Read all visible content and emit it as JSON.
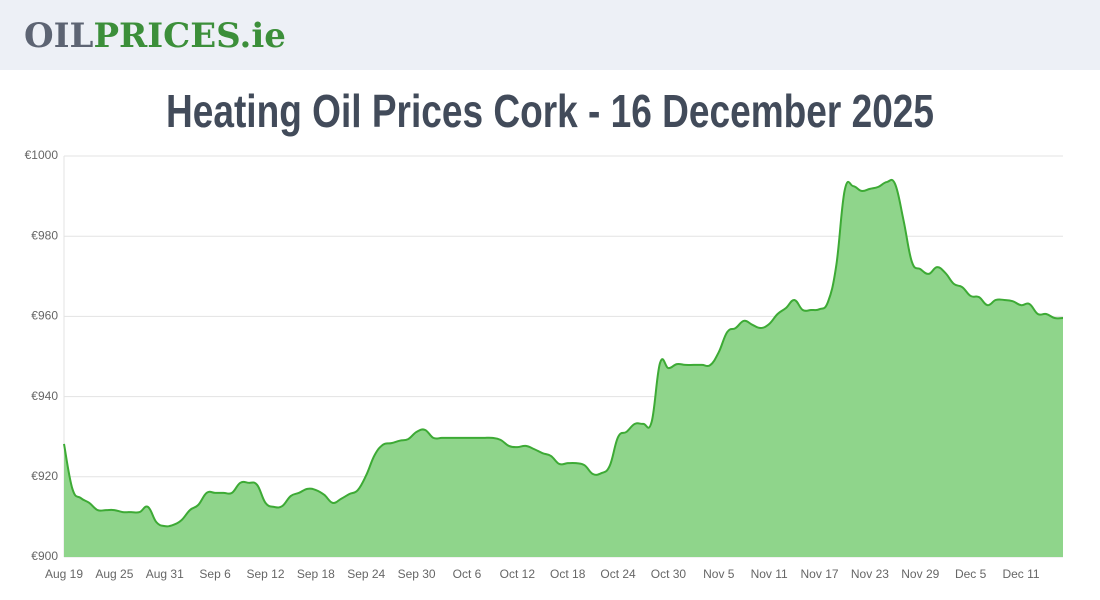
{
  "header": {
    "logo_part1": "OIL",
    "logo_part2": "PRICES.ie"
  },
  "chart_data": {
    "type": "area",
    "title": "Heating Oil Prices Cork - 16 December 2025",
    "color": "#3daa35",
    "fill": "#8fd58b",
    "grid": true,
    "ylim": [
      900,
      1000
    ],
    "yticks": [
      {
        "value": 900,
        "label": "€900"
      },
      {
        "value": 920,
        "label": "€920"
      },
      {
        "value": 940,
        "label": "€940"
      },
      {
        "value": 960,
        "label": "€960"
      },
      {
        "value": 980,
        "label": "€980"
      },
      {
        "value": 1000,
        "label": "€1000"
      }
    ],
    "categories": [
      "Aug 19",
      null,
      null,
      null,
      null,
      null,
      "Aug 25",
      null,
      null,
      null,
      null,
      null,
      "Aug 31",
      null,
      null,
      null,
      null,
      null,
      "Sep 6",
      null,
      null,
      null,
      null,
      null,
      "Sep 12",
      null,
      null,
      null,
      null,
      null,
      "Sep 18",
      null,
      null,
      null,
      null,
      null,
      "Sep 24",
      null,
      null,
      null,
      null,
      null,
      "Sep 30",
      null,
      null,
      null,
      null,
      null,
      "Oct 6",
      null,
      null,
      null,
      null,
      null,
      "Oct 12",
      null,
      null,
      null,
      null,
      null,
      "Oct 18",
      null,
      null,
      null,
      null,
      null,
      "Oct 24",
      null,
      null,
      null,
      null,
      null,
      "Oct 30",
      null,
      null,
      null,
      null,
      null,
      "Nov 5",
      null,
      null,
      null,
      null,
      null,
      "Nov 11",
      null,
      null,
      null,
      null,
      null,
      "Nov 17",
      null,
      null,
      null,
      null,
      null,
      "Nov 23",
      null,
      null,
      null,
      null,
      null,
      "Nov 29",
      null,
      null,
      null,
      null,
      null,
      "Dec 5",
      null,
      null,
      null,
      null,
      null,
      "Dec 11",
      null,
      null,
      null,
      null,
      null
    ],
    "values": [
      928.2,
      917,
      914.7,
      913.5,
      911.7,
      911.7,
      911.7,
      911.2,
      911.2,
      911.2,
      912.5,
      908.7,
      907.7,
      908,
      909.2,
      911.7,
      913,
      916,
      916,
      916,
      916,
      918.5,
      918.5,
      918,
      913.5,
      912.5,
      912.7,
      915.2,
      916,
      917,
      916.7,
      915.5,
      913.5,
      914.5,
      915.7,
      916.7,
      920.4,
      925.4,
      928,
      928.4,
      929,
      929.4,
      931.2,
      931.7,
      929.7,
      929.7,
      929.7,
      929.7,
      929.7,
      929.7,
      929.7,
      929.7,
      929.2,
      927.7,
      927.4,
      927.7,
      926.9,
      925.9,
      925.2,
      923.2,
      923.4,
      923.4,
      922.9,
      920.7,
      920.9,
      922.7,
      929.9,
      931.2,
      933.2,
      933.2,
      933.7,
      948.4,
      947.1,
      948.1,
      947.9,
      947.9,
      947.9,
      947.9,
      951.1,
      956.1,
      957.1,
      958.9,
      957.9,
      957.1,
      958.1,
      960.6,
      962.1,
      964.1,
      961.6,
      961.6,
      961.8,
      963.6,
      972.8,
      991.5,
      992.5,
      991.3,
      991.8,
      992.3,
      993.5,
      993,
      984,
      973.6,
      971.8,
      970.6,
      972.3,
      970.8,
      968.1,
      967.3,
      965.1,
      964.8,
      962.8,
      964.1,
      964.1,
      963.8,
      962.8,
      963.1,
      960.6,
      960.6,
      959.6,
      959.6
    ]
  }
}
